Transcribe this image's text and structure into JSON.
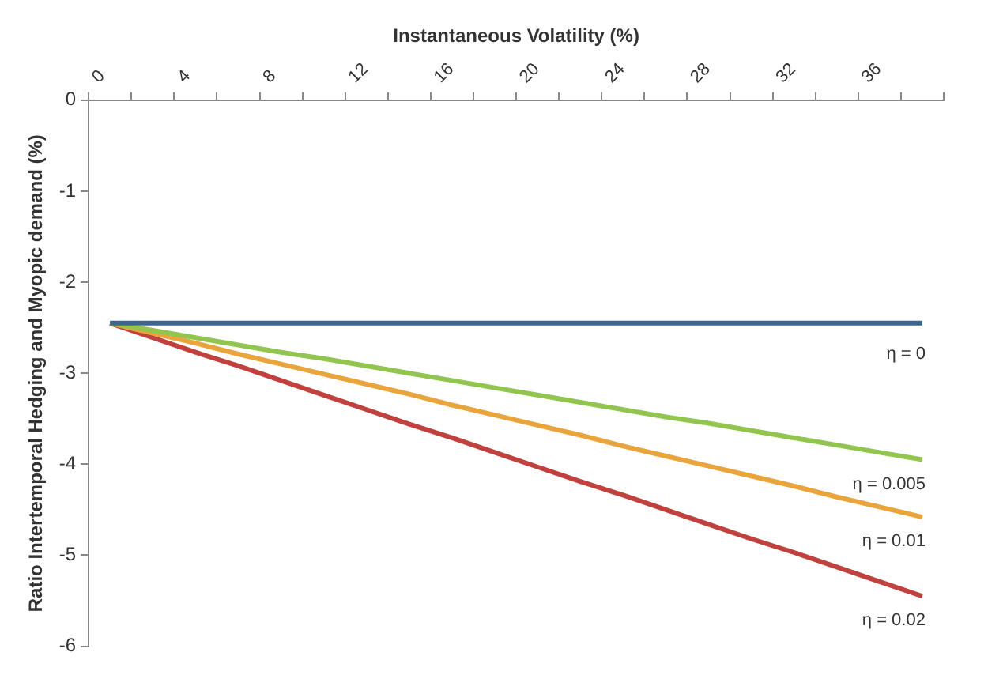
{
  "chart_data": {
    "type": "line",
    "xlabel": "Instantaneous Volatility (%)",
    "ylabel": "Ratio Intertemporal Hedging and Myopic demand (%)",
    "categories": [
      "0",
      null,
      "4",
      null,
      "8",
      null,
      "12",
      null,
      "16",
      null,
      "20",
      null,
      "24",
      null,
      "28",
      null,
      "32",
      null,
      "36",
      null
    ],
    "ylim": [
      -6,
      0
    ],
    "yticks": [
      0,
      -1,
      -2,
      -3,
      -4,
      -5,
      -6
    ],
    "grid": false,
    "legend": false,
    "marker": "none",
    "line_style": "solid",
    "series": [
      {
        "name": "η = 0",
        "color": "#3c6690",
        "values": [
          -2.45,
          -2.45,
          -2.45,
          -2.45,
          -2.45,
          -2.45,
          -2.45,
          -2.45,
          -2.45,
          -2.45,
          -2.45,
          -2.45,
          -2.45,
          -2.45,
          -2.45,
          -2.45,
          -2.45,
          -2.45,
          -2.45,
          -2.45
        ]
      },
      {
        "name": "η = 0.005",
        "color": "#92c550",
        "values": [
          -2.45,
          -2.53,
          -2.61,
          -2.69,
          -2.77,
          -2.84,
          -2.92,
          -3.0,
          -3.08,
          -3.16,
          -3.24,
          -3.32,
          -3.4,
          -3.48,
          -3.55,
          -3.63,
          -3.71,
          -3.79,
          -3.87,
          -3.95
        ]
      },
      {
        "name": "η = 0.01",
        "color": "#e9a43b",
        "values": [
          -2.45,
          -2.56,
          -2.67,
          -2.79,
          -2.9,
          -3.01,
          -3.12,
          -3.23,
          -3.35,
          -3.46,
          -3.57,
          -3.68,
          -3.8,
          -3.91,
          -4.02,
          -4.13,
          -4.24,
          -4.36,
          -4.47,
          -4.58
        ]
      },
      {
        "name": "η = 0.02",
        "color": "#c0413e",
        "values": [
          -2.45,
          -2.61,
          -2.77,
          -2.92,
          -3.08,
          -3.24,
          -3.4,
          -3.56,
          -3.71,
          -3.87,
          -4.03,
          -4.19,
          -4.34,
          -4.5,
          -4.66,
          -4.82,
          -4.97,
          -5.13,
          -5.29,
          -5.45
        ]
      }
    ]
  }
}
